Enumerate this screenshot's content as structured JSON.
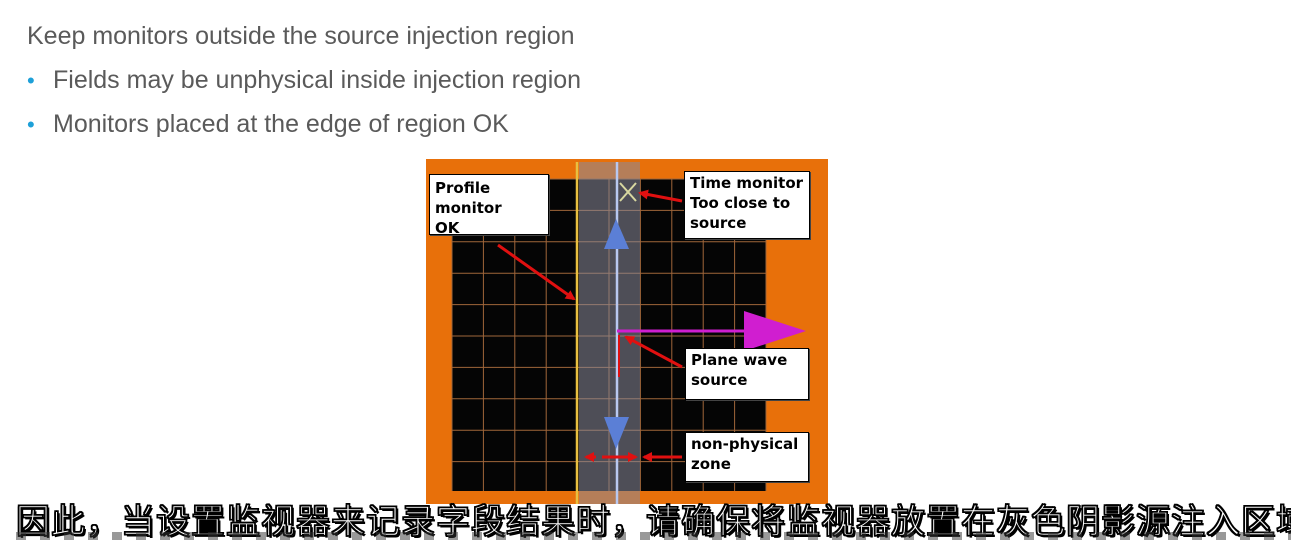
{
  "slide": {
    "heading": "Keep monitors outside the source injection region",
    "bullets": [
      "Fields may be unphysical inside injection region",
      "Monitors placed at the edge of region OK"
    ]
  },
  "figure": {
    "labels": {
      "profile_monitor": "Profile monitor\nOK",
      "time_monitor": "Time monitor\nToo close to\nsource",
      "plane_wave": "Plane wave\nsource",
      "non_physical": "non-physical\nzone"
    },
    "colors": {
      "frame": "#e8700a",
      "grid_bg": "#050505",
      "grid_line": "#a0663a",
      "injection_zone": "#8a8a9a",
      "profile_monitor_line": "#e8c040",
      "source_line": "#b8c8f0",
      "arrow_blue": "#5b7fd6",
      "arrow_magenta": "#d01ed0",
      "pointer_red": "#e01010"
    }
  },
  "subtitle": {
    "text": "因此，当设置监视器来记录字段结果时，请确保将监视器放置在灰色阴影源注入区域之外"
  }
}
